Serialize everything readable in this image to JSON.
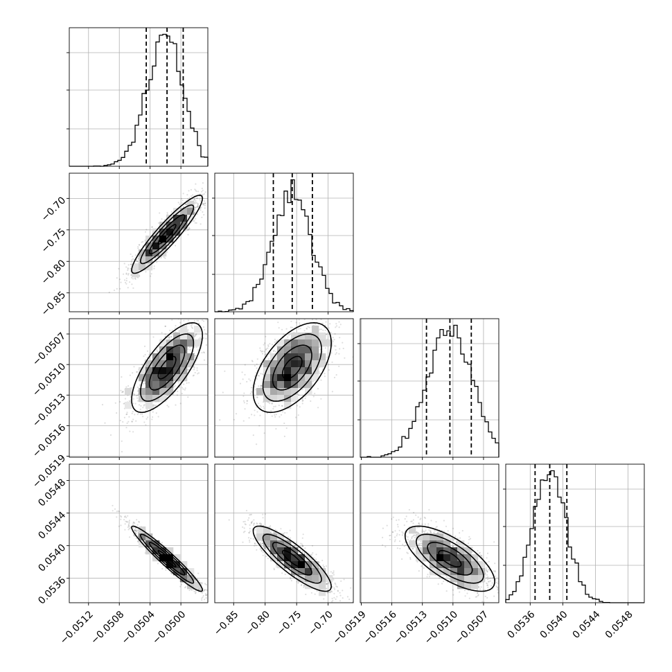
{
  "chart_data": {
    "type": "corner",
    "grid": true,
    "colors": {
      "ink": "#000000",
      "grid": "#b0b0b0",
      "background": "#ffffff"
    },
    "parameters": [
      {
        "index": 0,
        "median": -0.05018,
        "q16": -0.05045,
        "q84": -0.04997,
        "sigma": 0.00023,
        "range": [
          -0.05145,
          -0.04965
        ],
        "ticks": [
          -0.0512,
          -0.0508,
          -0.0504,
          -0.05
        ],
        "tick_labels": [
          "−0.0512",
          "−0.0508",
          "−0.0504",
          "−0.0500"
        ]
      },
      {
        "index": 1,
        "median": -0.757,
        "q16": -0.787,
        "q84": -0.725,
        "sigma": 0.031,
        "range": [
          -0.88,
          -0.66
        ],
        "ticks": [
          -0.85,
          -0.8,
          -0.75,
          -0.7
        ],
        "tick_labels": [
          "−0.85",
          "−0.80",
          "−0.75",
          "−0.70"
        ]
      },
      {
        "index": 2,
        "median": -0.05103,
        "q16": -0.05126,
        "q84": -0.05082,
        "sigma": 0.00022,
        "range": [
          -0.05191,
          -0.05055
        ],
        "ticks": [
          -0.0519,
          -0.0516,
          -0.0513,
          -0.051,
          -0.0507
        ],
        "tick_labels": [
          "−0.0519",
          "−0.0516",
          "−0.0513",
          "−0.0510",
          "−0.0507"
        ]
      },
      {
        "index": 3,
        "median": 0.05384,
        "q16": 0.05366,
        "q84": 0.05405,
        "sigma": 0.0002,
        "range": [
          0.0533,
          0.055
        ],
        "ticks": [
          0.0536,
          0.054,
          0.0544,
          0.0548
        ],
        "tick_labels": [
          "0.0536",
          "0.0540",
          "0.0544",
          "0.0548"
        ]
      }
    ],
    "correlations": [
      {
        "x": 0,
        "y": 1,
        "rho": 0.92
      },
      {
        "x": 0,
        "y": 2,
        "rho": 0.72
      },
      {
        "x": 1,
        "y": 2,
        "rho": 0.55
      },
      {
        "x": 0,
        "y": 3,
        "rho": -0.96
      },
      {
        "x": 1,
        "y": 3,
        "rho": -0.85
      },
      {
        "x": 2,
        "y": 3,
        "rho": -0.7
      }
    ],
    "contour_levels_sigma": [
      0.5,
      1.0,
      1.5,
      2.0
    ],
    "quantiles_drawn": [
      "q16",
      "median",
      "q84"
    ]
  }
}
